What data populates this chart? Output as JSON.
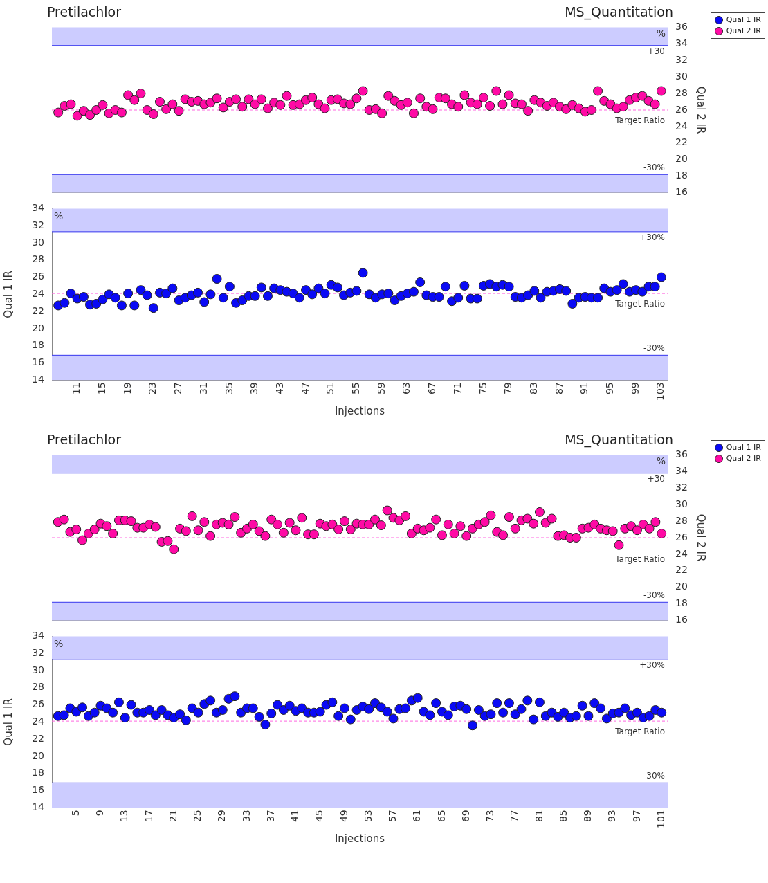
{
  "chart_data": [
    {
      "type": "scatter",
      "title": "Pretilachlor",
      "subtitle": "MS_Quantitation",
      "y2label": "Qual 2 IR",
      "legend": "top right",
      "marker": "circle",
      "tick_labels": "y2",
      "xlim": [
        7,
        104
      ],
      "y2lim": [
        16,
        36
      ],
      "y2ticks": [
        16,
        18,
        20,
        22,
        24,
        26,
        28,
        30,
        32,
        34,
        36
      ],
      "series": [
        {
          "name": "Qual 2 IR",
          "color": "#ff0aa5",
          "axis": "y2",
          "x": [
            8,
            9,
            10,
            11,
            12,
            13,
            14,
            15,
            16,
            17,
            18,
            19,
            20,
            21,
            22,
            23,
            24,
            25,
            26,
            27,
            28,
            29,
            30,
            31,
            32,
            33,
            34,
            35,
            36,
            37,
            38,
            39,
            40,
            41,
            42,
            43,
            44,
            45,
            46,
            47,
            48,
            49,
            50,
            51,
            52,
            53,
            54,
            55,
            56,
            57,
            58,
            59,
            60,
            61,
            62,
            63,
            64,
            65,
            66,
            67,
            68,
            69,
            70,
            71,
            72,
            73,
            74,
            75,
            76,
            77,
            78,
            79,
            80,
            81,
            82,
            83,
            84,
            85,
            86,
            87,
            88,
            89,
            90,
            91,
            92,
            93,
            94,
            95,
            96,
            97,
            98,
            99,
            100,
            101,
            102,
            103
          ],
          "values": [
            25.7,
            26.5,
            26.7,
            25.3,
            25.9,
            25.4,
            26.0,
            26.6,
            25.6,
            26.0,
            25.7,
            27.8,
            27.2,
            28.0,
            26.0,
            25.5,
            27.0,
            26.1,
            26.7,
            25.9,
            27.3,
            27.0,
            27.1,
            26.7,
            26.9,
            27.4,
            26.3,
            27.0,
            27.3,
            26.4,
            27.3,
            26.7,
            27.3,
            26.2,
            26.9,
            26.6,
            27.7,
            26.6,
            26.7,
            27.2,
            27.5,
            26.7,
            26.2,
            27.2,
            27.3,
            26.8,
            26.7,
            27.4,
            28.3,
            26.0,
            26.1,
            25.6,
            27.7,
            27.1,
            26.6,
            26.9,
            25.6,
            27.4,
            26.4,
            26.1,
            27.5,
            27.4,
            26.7,
            26.4,
            27.8,
            26.9,
            26.7,
            27.5,
            26.5,
            28.3,
            26.7,
            27.8,
            26.8,
            26.7,
            25.9,
            27.2,
            26.9,
            26.5,
            26.9,
            26.4,
            26.1,
            26.6,
            26.2,
            25.8,
            26.0,
            28.3,
            27.1,
            26.7,
            26.2,
            26.4,
            27.2,
            27.5,
            27.7,
            27.1,
            26.7,
            28.3
          ]
        }
      ],
      "ref_lines": [
        {
          "axis": "y2",
          "value": 26,
          "label": "Target Ratio",
          "color": "#ff66e0",
          "line_style": "dashed"
        },
        {
          "axis": "y2",
          "value": 33.8,
          "color": "#3333ee"
        },
        {
          "axis": "y2",
          "value": 18.2,
          "color": "#3333ee"
        }
      ],
      "bands": [
        {
          "axis": "y2",
          "from": 33.8,
          "to": 36,
          "color": "#ccccff"
        },
        {
          "axis": "y2",
          "from": 16,
          "to": 18.2,
          "color": "#ccccff"
        }
      ],
      "annotations": [
        "%",
        "+30",
        "-30%"
      ]
    },
    {
      "type": "scatter",
      "xlabel": "Injections",
      "ylabel": "Qual 1 IR",
      "legend": "top right",
      "marker": "circle",
      "xlim": [
        7,
        104
      ],
      "xticks": [
        11,
        15,
        19,
        23,
        27,
        31,
        35,
        39,
        43,
        47,
        51,
        55,
        59,
        63,
        67,
        71,
        75,
        79,
        83,
        87,
        91,
        95,
        99,
        103
      ],
      "ylim": [
        14,
        34
      ],
      "yticks": [
        14,
        16,
        18,
        20,
        22,
        24,
        26,
        28,
        30,
        32,
        34
      ],
      "series": [
        {
          "name": "Qual 1 IR",
          "color": "#0a0af5",
          "x": [
            8,
            9,
            10,
            11,
            12,
            13,
            14,
            15,
            16,
            17,
            18,
            19,
            20,
            21,
            22,
            23,
            24,
            25,
            26,
            27,
            28,
            29,
            30,
            31,
            32,
            33,
            34,
            35,
            36,
            37,
            38,
            39,
            40,
            41,
            42,
            43,
            44,
            45,
            46,
            47,
            48,
            49,
            50,
            51,
            52,
            53,
            54,
            55,
            56,
            57,
            58,
            59,
            60,
            61,
            62,
            63,
            64,
            65,
            66,
            67,
            68,
            69,
            70,
            71,
            72,
            73,
            74,
            75,
            76,
            77,
            78,
            79,
            80,
            81,
            82,
            83,
            84,
            85,
            86,
            87,
            88,
            89,
            90,
            91,
            92,
            93,
            94,
            95,
            96,
            97,
            98,
            99,
            100,
            101,
            102,
            103
          ],
          "values": [
            22.7,
            23.0,
            24.1,
            23.5,
            23.7,
            22.8,
            22.9,
            23.4,
            24.0,
            23.6,
            22.7,
            24.1,
            22.7,
            24.5,
            23.9,
            22.4,
            24.2,
            24.1,
            24.7,
            23.3,
            23.6,
            23.9,
            24.2,
            23.1,
            24.0,
            25.8,
            23.6,
            24.9,
            23.0,
            23.3,
            23.8,
            23.8,
            24.8,
            23.8,
            24.7,
            24.5,
            24.3,
            24.1,
            23.6,
            24.5,
            24.0,
            24.7,
            24.1,
            25.1,
            24.8,
            23.9,
            24.2,
            24.4,
            26.5,
            24.0,
            23.6,
            24.0,
            24.1,
            23.3,
            23.8,
            24.1,
            24.3,
            25.4,
            23.9,
            23.7,
            23.7,
            24.9,
            23.2,
            23.6,
            25.0,
            23.5,
            23.5,
            25.0,
            25.2,
            24.9,
            25.1,
            24.9,
            23.7,
            23.6,
            23.9,
            24.4,
            23.6,
            24.3,
            24.4,
            24.6,
            24.4,
            22.9,
            23.6,
            23.7,
            23.6,
            23.6,
            24.7,
            24.3,
            24.5,
            25.2,
            24.3,
            24.5,
            24.3,
            24.9,
            24.9,
            26.0
          ]
        }
      ],
      "ref_lines": [
        {
          "axis": "y",
          "value": 24.1,
          "label": "Target Ratio",
          "color": "#ff66e0",
          "line_style": "dashed"
        },
        {
          "axis": "y",
          "value": 31.3,
          "color": "#3333ee"
        },
        {
          "axis": "y",
          "value": 16.9,
          "color": "#3333ee"
        }
      ],
      "bands": [
        {
          "axis": "y",
          "from": 31.3,
          "to": 34,
          "color": "#ccccff"
        },
        {
          "axis": "y",
          "from": 14,
          "to": 16.9,
          "color": "#ccccff"
        }
      ],
      "annotations": [
        "%",
        "+30%",
        "-30%"
      ]
    },
    {
      "type": "scatter",
      "title": "Pretilachlor",
      "subtitle": "MS_Quantitation",
      "y2label": "Qual 2 IR",
      "legend": "top right",
      "marker": "circle",
      "tick_labels": "y2",
      "xlim": [
        1,
        102
      ],
      "y2lim": [
        16,
        36
      ],
      "y2ticks": [
        16,
        18,
        20,
        22,
        24,
        26,
        28,
        30,
        32,
        34,
        36
      ],
      "series": [
        {
          "name": "Qual 2 IR",
          "color": "#ff0aa5",
          "axis": "y2",
          "x": [
            2,
            3,
            4,
            5,
            6,
            7,
            8,
            9,
            10,
            11,
            12,
            13,
            14,
            15,
            16,
            17,
            18,
            19,
            20,
            21,
            22,
            23,
            24,
            25,
            26,
            27,
            28,
            29,
            30,
            31,
            32,
            33,
            34,
            35,
            36,
            37,
            38,
            39,
            40,
            41,
            42,
            43,
            44,
            45,
            46,
            47,
            48,
            49,
            50,
            51,
            52,
            53,
            54,
            55,
            56,
            57,
            58,
            59,
            60,
            61,
            62,
            63,
            64,
            65,
            66,
            67,
            68,
            69,
            70,
            71,
            72,
            73,
            74,
            75,
            76,
            77,
            78,
            79,
            80,
            81,
            82,
            83,
            84,
            85,
            86,
            87,
            88,
            89,
            90,
            91,
            92,
            93,
            94,
            95,
            96,
            97,
            98,
            99,
            100,
            101
          ],
          "values": [
            27.9,
            28.2,
            26.7,
            27.0,
            25.7,
            26.5,
            27.0,
            27.7,
            27.4,
            26.5,
            28.1,
            28.1,
            28.0,
            27.2,
            27.2,
            27.6,
            27.3,
            25.5,
            25.6,
            24.6,
            27.1,
            26.8,
            28.6,
            26.9,
            27.9,
            26.2,
            27.6,
            27.8,
            27.6,
            28.5,
            26.6,
            27.1,
            27.6,
            26.8,
            26.2,
            28.2,
            27.6,
            26.6,
            27.8,
            26.9,
            28.4,
            26.4,
            26.4,
            27.7,
            27.4,
            27.6,
            27.0,
            28.0,
            27.0,
            27.7,
            27.6,
            27.6,
            28.2,
            27.5,
            29.3,
            28.4,
            28.1,
            28.6,
            26.5,
            27.1,
            26.9,
            27.2,
            28.2,
            26.3,
            27.6,
            26.5,
            27.4,
            26.2,
            27.1,
            27.6,
            27.9,
            28.7,
            26.7,
            26.3,
            28.5,
            27.1,
            28.1,
            28.3,
            27.7,
            29.1,
            27.8,
            28.3,
            26.2,
            26.3,
            26.0,
            26.0,
            27.1,
            27.2,
            27.6,
            27.1,
            26.9,
            26.8,
            25.1,
            27.1,
            27.4,
            26.9,
            27.6,
            27.1,
            27.9,
            26.5
          ]
        }
      ],
      "ref_lines": [
        {
          "axis": "y2",
          "value": 26,
          "label": "Target Ratio",
          "color": "#ff66e0",
          "line_style": "dashed"
        },
        {
          "axis": "y2",
          "value": 33.8,
          "color": "#3333ee"
        },
        {
          "axis": "y2",
          "value": 18.2,
          "color": "#3333ee"
        }
      ],
      "bands": [
        {
          "axis": "y2",
          "from": 33.8,
          "to": 36,
          "color": "#ccccff"
        },
        {
          "axis": "y2",
          "from": 16,
          "to": 18.2,
          "color": "#ccccff"
        }
      ],
      "annotations": [
        "%",
        "+30",
        "-30%"
      ]
    },
    {
      "type": "scatter",
      "xlabel": "Injections",
      "ylabel": "Qual 1 IR",
      "legend": "top right",
      "marker": "circle",
      "xlim": [
        1,
        102
      ],
      "xticks": [
        5,
        9,
        13,
        17,
        21,
        25,
        29,
        33,
        37,
        41,
        45,
        49,
        53,
        57,
        61,
        65,
        69,
        73,
        77,
        81,
        85,
        89,
        93,
        97,
        101
      ],
      "ylim": [
        14,
        34
      ],
      "yticks": [
        14,
        16,
        18,
        20,
        22,
        24,
        26,
        28,
        30,
        32,
        34
      ],
      "series": [
        {
          "name": "Qual 1 IR",
          "color": "#0a0af5",
          "x": [
            2,
            3,
            4,
            5,
            6,
            7,
            8,
            9,
            10,
            11,
            12,
            13,
            14,
            15,
            16,
            17,
            18,
            19,
            20,
            21,
            22,
            23,
            24,
            25,
            26,
            27,
            28,
            29,
            30,
            31,
            32,
            33,
            34,
            35,
            36,
            37,
            38,
            39,
            40,
            41,
            42,
            43,
            44,
            45,
            46,
            47,
            48,
            49,
            50,
            51,
            52,
            53,
            54,
            55,
            56,
            57,
            58,
            59,
            60,
            61,
            62,
            63,
            64,
            65,
            66,
            67,
            68,
            69,
            70,
            71,
            72,
            73,
            74,
            75,
            76,
            77,
            78,
            79,
            80,
            81,
            82,
            83,
            84,
            85,
            86,
            87,
            88,
            89,
            90,
            91,
            92,
            93,
            94,
            95,
            96,
            97,
            98,
            99,
            100,
            101
          ],
          "values": [
            24.7,
            24.8,
            25.6,
            25.2,
            25.7,
            24.7,
            25.1,
            25.9,
            25.6,
            25.1,
            26.3,
            24.5,
            26.0,
            25.1,
            25.1,
            25.4,
            24.8,
            25.4,
            24.8,
            24.5,
            24.9,
            24.2,
            25.6,
            25.1,
            26.1,
            26.5,
            25.1,
            25.4,
            26.7,
            27.0,
            25.1,
            25.6,
            25.6,
            24.6,
            23.7,
            25.0,
            26.0,
            25.4,
            25.9,
            25.3,
            25.6,
            25.1,
            25.1,
            25.2,
            26.0,
            26.3,
            24.7,
            25.6,
            24.3,
            25.4,
            25.8,
            25.5,
            26.2,
            25.7,
            25.2,
            24.4,
            25.5,
            25.6,
            26.5,
            26.8,
            25.2,
            24.8,
            26.2,
            25.2,
            24.8,
            25.8,
            25.9,
            25.5,
            23.6,
            25.4,
            24.7,
            24.9,
            26.2,
            25.1,
            26.2,
            24.9,
            25.5,
            26.5,
            24.3,
            26.3,
            24.7,
            25.1,
            24.6,
            25.1,
            24.5,
            24.7,
            25.9,
            24.7,
            26.2,
            25.6,
            24.4,
            25.0,
            25.1,
            25.6,
            24.8,
            25.1,
            24.5,
            24.7,
            25.4,
            25.1
          ]
        }
      ],
      "ref_lines": [
        {
          "axis": "y",
          "value": 24.1,
          "label": "Target Ratio",
          "color": "#ff66e0",
          "line_style": "dashed"
        },
        {
          "axis": "y",
          "value": 31.3,
          "color": "#3333ee"
        },
        {
          "axis": "y",
          "value": 16.9,
          "color": "#3333ee"
        }
      ],
      "bands": [
        {
          "axis": "y",
          "from": 31.3,
          "to": 34,
          "color": "#ccccff"
        },
        {
          "axis": "y",
          "from": 14,
          "to": 16.9,
          "color": "#ccccff"
        }
      ],
      "annotations": [
        "%",
        "+30%",
        "-30%"
      ]
    }
  ]
}
